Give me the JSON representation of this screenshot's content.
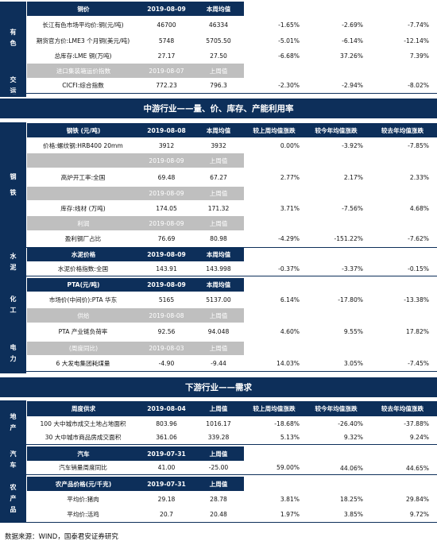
{
  "top": {
    "cat_nonferrous": "有\n色",
    "cat_transport": "交\n运",
    "header_label": "铜价",
    "header_date": "2019-08-09",
    "header_avg": "本周均值",
    "rows": [
      {
        "name": "长江有色市场平均价:铜(元/吨)",
        "v1": "46700",
        "v2": "46334",
        "p1": "-1.65%",
        "p2": "-2.69%",
        "p3": "-7.74%"
      },
      {
        "name": "期货官方价:LME3 个月铜(美元/吨)",
        "v1": "5748",
        "v2": "5705.50",
        "p1": "-5.01%",
        "p2": "-6.14%",
        "p3": "-12.14%"
      },
      {
        "name": "总库存:LME 铜(万吨)",
        "v1": "27.17",
        "v2": "27.50",
        "p1": "-6.68%",
        "p2": "37.26%",
        "p3": "7.39%"
      }
    ],
    "sub_header_label": "进口集装箱运价指数",
    "sub_header_date": "2019-08-07",
    "sub_header_prev": "上周值",
    "ccfi": {
      "name": "CICFI:综合指数",
      "v1": "772.23",
      "v2": "796.3",
      "p1": "-2.30%",
      "p2": "-2.94%",
      "p3": "-8.02%"
    }
  },
  "mid": {
    "title": "中游行业——量、价、库存、产能利用率",
    "cat_steel": "钢\n铁",
    "cat_cement": "水\n泥",
    "cat_chem": "化\n工",
    "cat_power": "电\n力",
    "steel_header": {
      "label": "钢铁 (元/吨)",
      "date": "2019-08-08",
      "avg": "本周均值",
      "h1": "较上周均值涨跌",
      "h2": "较今年均值涨跌",
      "h3": "较去年均值涨跌"
    },
    "rebar": {
      "name": "价格:螺纹钢:HRB400 20mm",
      "v1": "3912",
      "v2": "3932",
      "p1": "0.00%",
      "p2": "-3.92%",
      "p3": "-7.85%"
    },
    "furnace_header": {
      "date": "2019-08-09",
      "prev": "上周值"
    },
    "furnace": {
      "name": "高炉开工率:全国",
      "v1": "69.48",
      "v2": "67.27",
      "p1": "2.77%",
      "p2": "2.17%",
      "p3": "2.33%"
    },
    "wire_header": {
      "date": "2019-08-09",
      "prev": "上周值"
    },
    "wire": {
      "name": "库存:线材 (万吨)",
      "v1": "174.05",
      "v2": "171.32",
      "p1": "3.71%",
      "p2": "-7.56%",
      "p3": "4.68%"
    },
    "profit_header": {
      "label": "利润",
      "date": "2019-08-09",
      "prev": "上周值"
    },
    "profit": {
      "name": "盈利钢厂占比",
      "v1": "76.69",
      "v2": "80.98",
      "p1": "-4.29%",
      "p2": "-151.22%",
      "p3": "-7.62%"
    },
    "cement_header": {
      "label": "水泥价格",
      "date": "2019-08-09",
      "avg": "本周均值"
    },
    "cement": {
      "name": "水泥价格指数:全国",
      "v1": "143.91",
      "v2": "143.998",
      "p1": "-0.37%",
      "p2": "-3.37%",
      "p3": "-0.15%"
    },
    "pta_header": {
      "label": "PTA(元/吨)",
      "date": "2019-08-09",
      "avg": "本周均值"
    },
    "pta": {
      "name": "市场价(中间价):PTA 华东",
      "v1": "5165",
      "v2": "5137.00",
      "p1": "6.14%",
      "p2": "-17.80%",
      "p3": "-13.38%"
    },
    "supply_header": {
      "label": "供给",
      "date": "2019-08-08",
      "prev": "上周值"
    },
    "pta_load": {
      "name": "PTA 产业链负荷率",
      "v1": "92.56",
      "v2": "94.048",
      "p1": "4.60%",
      "p2": "9.55%",
      "p3": "17.82%"
    },
    "power_header": {
      "label": "(周度同比)",
      "date": "2019-08-03",
      "prev": "上周值"
    },
    "power": {
      "name": "6 大发电集团耗煤量",
      "v1": "-4.90",
      "v2": "-9.44",
      "p1": "14.03%",
      "p2": "3.05%",
      "p3": "-7.45%"
    }
  },
  "down": {
    "title": "下游行业——需求",
    "cat_estate": "地\n产",
    "cat_auto": "汽\n车",
    "cat_agri": "农\n产\n品",
    "estate_header": {
      "label": "周度供求",
      "date": "2019-08-04",
      "prev": "上周值",
      "h1": "较上周均值涨跌",
      "h2": "较今年均值涨跌",
      "h3": "较去年均值涨跌"
    },
    "land": {
      "name": "100 大中城市成交土地占地面积",
      "v1": "803.96",
      "v2": "1016.17",
      "p1": "-18.68%",
      "p2": "-26.40%",
      "p3": "-37.88%"
    },
    "house": {
      "name": "30 大中城市商品房成交面积",
      "v1": "361.06",
      "v2": "339.28",
      "p1": "5.13%",
      "p2": "9.32%",
      "p3": "9.24%"
    },
    "auto_header": {
      "label": "汽车",
      "date": "2019-07-31",
      "prev": "上周值"
    },
    "auto": {
      "name": "汽车销量周度同比",
      "v1": "41.00",
      "v2": "-25.00",
      "p1": "59.00%",
      "p2": "44.06%",
      "p3": "44.65%"
    },
    "agri_header": {
      "label": "农产品价格(元/千克)",
      "date": "2019-07-31",
      "prev": "上周值"
    },
    "pork": {
      "name": "平均价:猪肉",
      "v1": "29.18",
      "v2": "28.78",
      "p1": "3.81%",
      "p2": "18.25%",
      "p3": "29.84%"
    },
    "chicken": {
      "name": "平均价:活鸡",
      "v1": "20.7",
      "v2": "20.48",
      "p1": "1.97%",
      "p2": "3.85%",
      "p3": "9.72%"
    }
  },
  "source": "数据来源：WIND，国泰君安证券研究"
}
